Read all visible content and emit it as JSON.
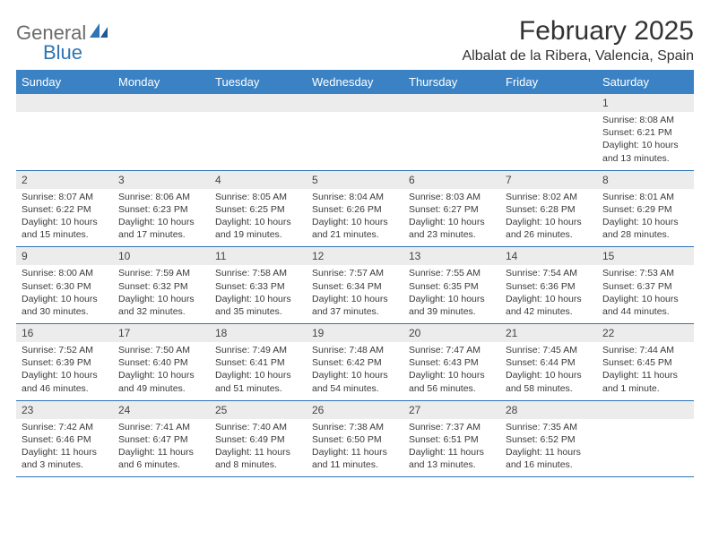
{
  "logo": {
    "text1": "General",
    "text2": "Blue"
  },
  "title": "February 2025",
  "location": "Albalat de la Ribera, Valencia, Spain",
  "colors": {
    "header_bg": "#3b82c4",
    "header_text": "#ffffff",
    "daynum_bg": "#ececec",
    "rule": "#2f74b5",
    "text": "#3a3a3a",
    "logo_gray": "#6b6b6b",
    "logo_blue": "#2f74b5"
  },
  "table": {
    "columns": [
      "Sunday",
      "Monday",
      "Tuesday",
      "Wednesday",
      "Thursday",
      "Friday",
      "Saturday"
    ],
    "weeks": [
      [
        null,
        null,
        null,
        null,
        null,
        null,
        {
          "n": "1",
          "sunrise": "8:08 AM",
          "sunset": "6:21 PM",
          "daylight": "10 hours and 13 minutes."
        }
      ],
      [
        {
          "n": "2",
          "sunrise": "8:07 AM",
          "sunset": "6:22 PM",
          "daylight": "10 hours and 15 minutes."
        },
        {
          "n": "3",
          "sunrise": "8:06 AM",
          "sunset": "6:23 PM",
          "daylight": "10 hours and 17 minutes."
        },
        {
          "n": "4",
          "sunrise": "8:05 AM",
          "sunset": "6:25 PM",
          "daylight": "10 hours and 19 minutes."
        },
        {
          "n": "5",
          "sunrise": "8:04 AM",
          "sunset": "6:26 PM",
          "daylight": "10 hours and 21 minutes."
        },
        {
          "n": "6",
          "sunrise": "8:03 AM",
          "sunset": "6:27 PM",
          "daylight": "10 hours and 23 minutes."
        },
        {
          "n": "7",
          "sunrise": "8:02 AM",
          "sunset": "6:28 PM",
          "daylight": "10 hours and 26 minutes."
        },
        {
          "n": "8",
          "sunrise": "8:01 AM",
          "sunset": "6:29 PM",
          "daylight": "10 hours and 28 minutes."
        }
      ],
      [
        {
          "n": "9",
          "sunrise": "8:00 AM",
          "sunset": "6:30 PM",
          "daylight": "10 hours and 30 minutes."
        },
        {
          "n": "10",
          "sunrise": "7:59 AM",
          "sunset": "6:32 PM",
          "daylight": "10 hours and 32 minutes."
        },
        {
          "n": "11",
          "sunrise": "7:58 AM",
          "sunset": "6:33 PM",
          "daylight": "10 hours and 35 minutes."
        },
        {
          "n": "12",
          "sunrise": "7:57 AM",
          "sunset": "6:34 PM",
          "daylight": "10 hours and 37 minutes."
        },
        {
          "n": "13",
          "sunrise": "7:55 AM",
          "sunset": "6:35 PM",
          "daylight": "10 hours and 39 minutes."
        },
        {
          "n": "14",
          "sunrise": "7:54 AM",
          "sunset": "6:36 PM",
          "daylight": "10 hours and 42 minutes."
        },
        {
          "n": "15",
          "sunrise": "7:53 AM",
          "sunset": "6:37 PM",
          "daylight": "10 hours and 44 minutes."
        }
      ],
      [
        {
          "n": "16",
          "sunrise": "7:52 AM",
          "sunset": "6:39 PM",
          "daylight": "10 hours and 46 minutes."
        },
        {
          "n": "17",
          "sunrise": "7:50 AM",
          "sunset": "6:40 PM",
          "daylight": "10 hours and 49 minutes."
        },
        {
          "n": "18",
          "sunrise": "7:49 AM",
          "sunset": "6:41 PM",
          "daylight": "10 hours and 51 minutes."
        },
        {
          "n": "19",
          "sunrise": "7:48 AM",
          "sunset": "6:42 PM",
          "daylight": "10 hours and 54 minutes."
        },
        {
          "n": "20",
          "sunrise": "7:47 AM",
          "sunset": "6:43 PM",
          "daylight": "10 hours and 56 minutes."
        },
        {
          "n": "21",
          "sunrise": "7:45 AM",
          "sunset": "6:44 PM",
          "daylight": "10 hours and 58 minutes."
        },
        {
          "n": "22",
          "sunrise": "7:44 AM",
          "sunset": "6:45 PM",
          "daylight": "11 hours and 1 minute."
        }
      ],
      [
        {
          "n": "23",
          "sunrise": "7:42 AM",
          "sunset": "6:46 PM",
          "daylight": "11 hours and 3 minutes."
        },
        {
          "n": "24",
          "sunrise": "7:41 AM",
          "sunset": "6:47 PM",
          "daylight": "11 hours and 6 minutes."
        },
        {
          "n": "25",
          "sunrise": "7:40 AM",
          "sunset": "6:49 PM",
          "daylight": "11 hours and 8 minutes."
        },
        {
          "n": "26",
          "sunrise": "7:38 AM",
          "sunset": "6:50 PM",
          "daylight": "11 hours and 11 minutes."
        },
        {
          "n": "27",
          "sunrise": "7:37 AM",
          "sunset": "6:51 PM",
          "daylight": "11 hours and 13 minutes."
        },
        {
          "n": "28",
          "sunrise": "7:35 AM",
          "sunset": "6:52 PM",
          "daylight": "11 hours and 16 minutes."
        },
        null
      ]
    ]
  },
  "labels": {
    "sunrise": "Sunrise: ",
    "sunset": "Sunset: ",
    "daylight": "Daylight: "
  }
}
